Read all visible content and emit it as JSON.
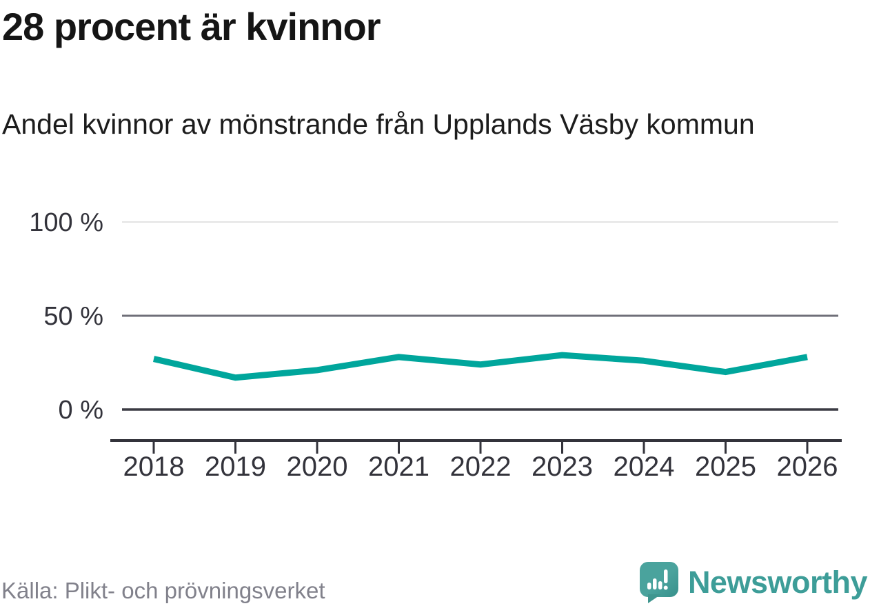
{
  "header": {
    "title": "28 procent är kvinnor",
    "subtitle": "Andel kvinnor av mönstrande från Upplands Väsby kommun"
  },
  "chart_data": {
    "type": "line",
    "title": "28 procent är kvinnor",
    "subtitle": "Andel kvinnor av mönstrande från Upplands Väsby kommun",
    "x": [
      2018,
      2019,
      2020,
      2021,
      2022,
      2023,
      2024,
      2025,
      2026
    ],
    "x_tick_labels": [
      "2018",
      "2019",
      "2020",
      "2021",
      "2022",
      "2023",
      "2024",
      "2025",
      "2026"
    ],
    "series": [
      {
        "name": "Andel kvinnor av mönstrande",
        "values": [
          27,
          17,
          21,
          28,
          24,
          29,
          26,
          20,
          28
        ],
        "unit": "%"
      }
    ],
    "latest_value_pct": 28,
    "ylim": [
      0,
      100
    ],
    "yticks": [
      {
        "value": 0,
        "label": "0 %",
        "line_color": "#3b3b43",
        "line_width": 3.5
      },
      {
        "value": 50,
        "label": "50 %",
        "line_color": "#6f6f78",
        "line_width": 3
      },
      {
        "value": 100,
        "label": "100 %",
        "line_color": "#e3e3e3",
        "line_width": 2
      }
    ],
    "grid": "horizontal",
    "legend": "none",
    "line_color": "#00a69c",
    "axis_color": "#33333b",
    "tick_label_color": "#33333b"
  },
  "footer": {
    "source": "Källa: Plikt- och prövningsverket",
    "brand_name": "Newsworthy",
    "brand_color": "#3d9d98",
    "logo_bubble_color": "#4aa39d",
    "logo_bubble_shade": "#37908b"
  }
}
